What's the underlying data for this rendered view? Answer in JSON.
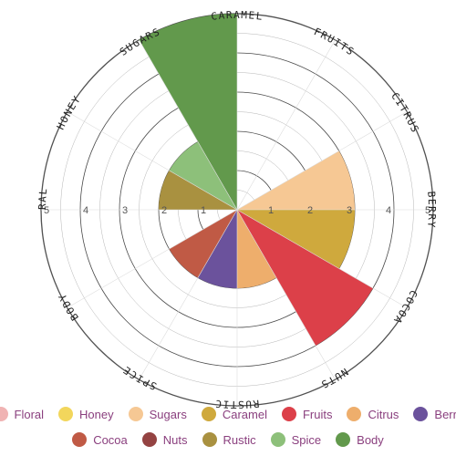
{
  "chart_data": {
    "type": "polar-area",
    "categories": [
      "Floral",
      "Honey",
      "Sugars",
      "Caramel",
      "Fruits",
      "Citrus",
      "Berry",
      "Cocoa",
      "Nuts",
      "Rustic",
      "Spice",
      "Body"
    ],
    "values": [
      0,
      0,
      3,
      3,
      4,
      2,
      2,
      2,
      0,
      2,
      2,
      5
    ],
    "colors": [
      "#f0b3b3",
      "#f2d65c",
      "#f6c894",
      "#cfa93d",
      "#dc4049",
      "#eeae6c",
      "#6b529c",
      "#c05a45",
      "#944342",
      "#a99140",
      "#8dc07a",
      "#62994c"
    ],
    "rlim": [
      0,
      5
    ],
    "ticks": [
      "1",
      "2",
      "3",
      "4",
      "5"
    ],
    "axis_labels": [
      "FLORAL",
      "HONEY",
      "SUGARS",
      "CARAMEL",
      "FRUITS",
      "CITRUS",
      "BERRY",
      "COCOA",
      "NUTS",
      "RUSTIC",
      "SPICE",
      "BODY"
    ],
    "legend_position": "bottom"
  }
}
